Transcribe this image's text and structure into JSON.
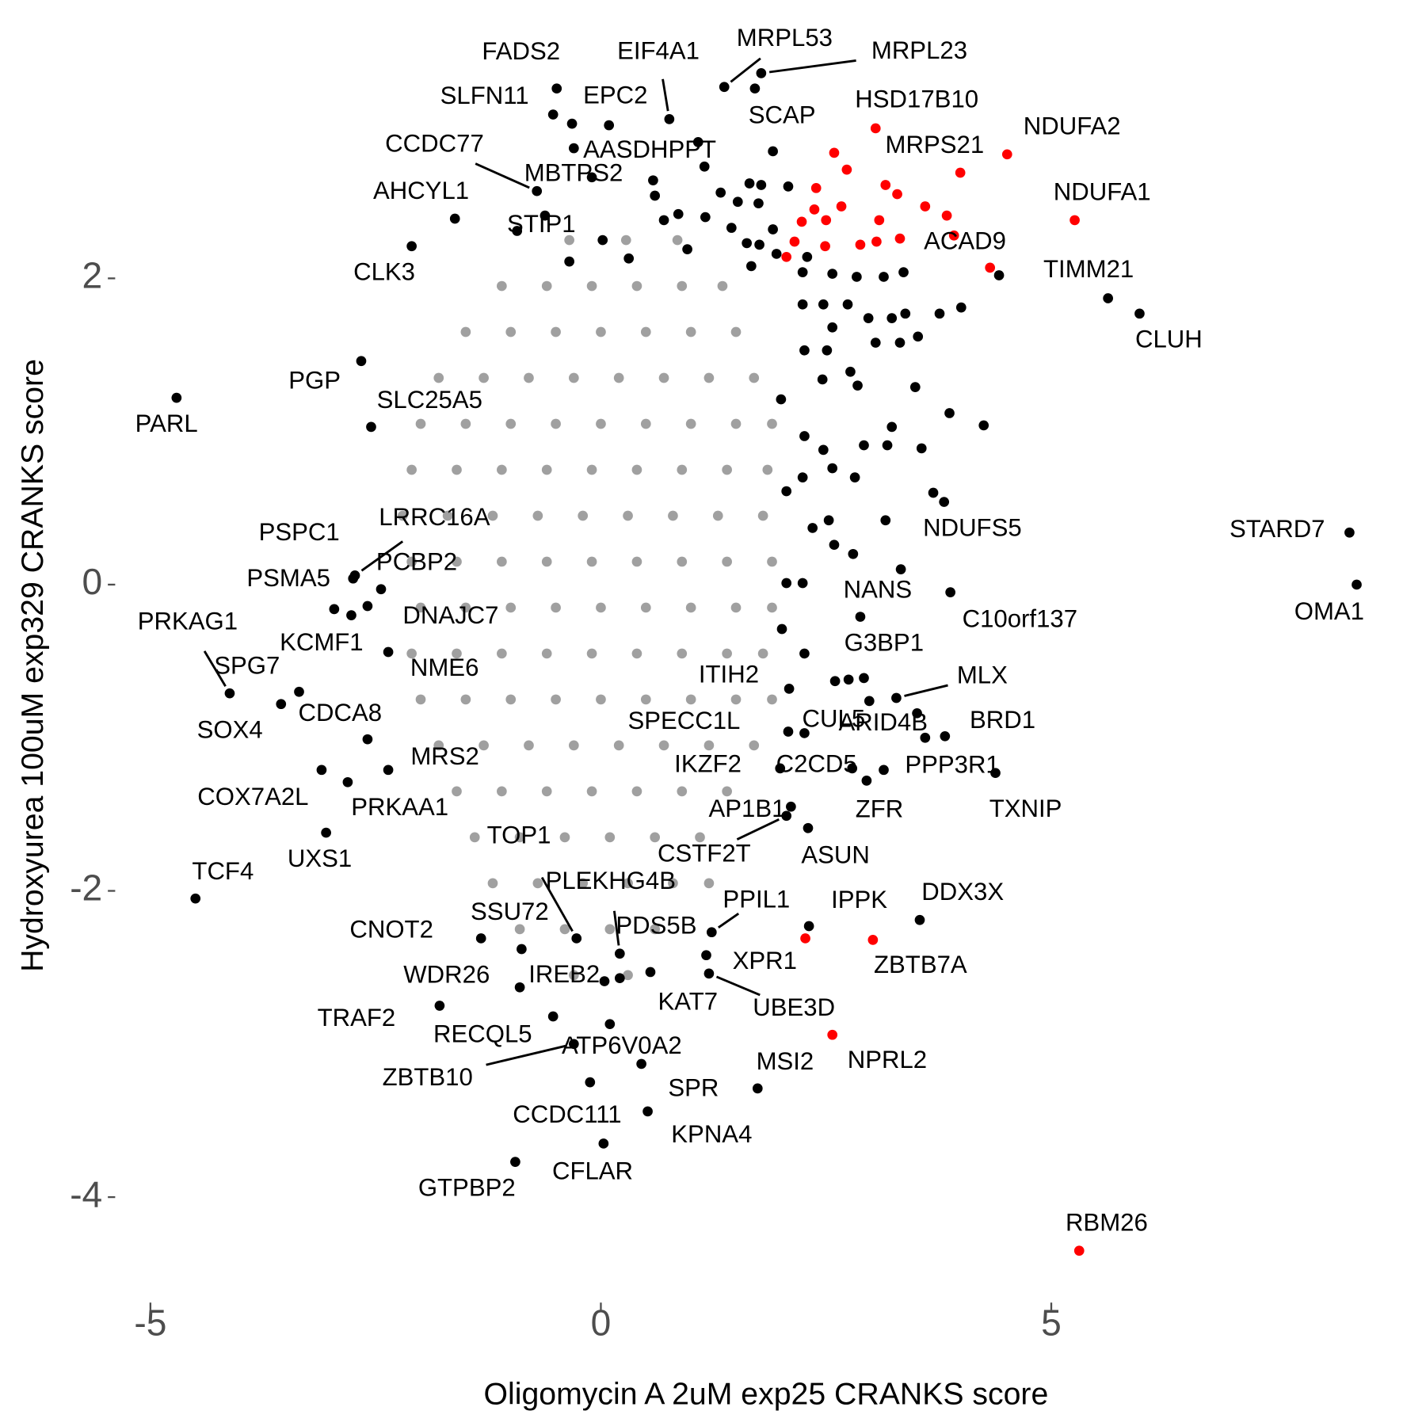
{
  "chart_data": {
    "type": "scatter",
    "x_label": "Oligomycin A 2uM exp25 CRANKS score",
    "y_label": "Hydroxyurea 100uM exp329 CRANKS score",
    "xlim": [
      -5.3,
      8.5
    ],
    "ylim": [
      -4.45,
      3.4
    ],
    "xticks": [
      -5,
      0,
      5
    ],
    "yticks": [
      -4,
      -2,
      0,
      2
    ],
    "grid": false,
    "series": [
      {
        "color": "#a0a0a0",
        "x": [
          -0.35,
          0.28,
          0.85,
          -1.1,
          -0.6,
          -0.1,
          0.4,
          0.9,
          1.35,
          -1.5,
          -1.0,
          -0.5,
          0,
          0.5,
          1.0,
          1.5,
          -1.8,
          -1.3,
          -0.8,
          -0.3,
          0.2,
          0.7,
          1.2,
          1.7,
          -2.0,
          -1.5,
          -1.0,
          -0.5,
          0,
          0.5,
          1.0,
          1.5,
          1.9,
          -2.1,
          -1.6,
          -1.1,
          -0.6,
          -0.1,
          0.4,
          0.9,
          1.4,
          1.85,
          -2.2,
          -1.7,
          -1.2,
          -0.7,
          -0.2,
          0.3,
          0.8,
          1.3,
          1.8,
          -2.1,
          -1.6,
          -1.1,
          -0.6,
          -0.1,
          0.4,
          0.9,
          1.4,
          1.9,
          -2.0,
          -1.5,
          -1.0,
          -0.5,
          0,
          0.5,
          1.0,
          1.5,
          1.9,
          -2.1,
          -1.6,
          -1.1,
          -0.6,
          -0.1,
          0.4,
          0.9,
          1.4,
          1.8,
          -2.0,
          -1.5,
          -1.0,
          -0.5,
          0,
          0.5,
          1.0,
          1.5,
          1.9,
          -1.8,
          -1.3,
          -0.8,
          -0.3,
          0.2,
          0.7,
          1.2,
          1.7,
          -1.6,
          -1.1,
          -0.6,
          -0.1,
          0.4,
          0.9,
          1.4,
          -1.4,
          -0.9,
          -0.4,
          0.1,
          0.6,
          1.1,
          -1.2,
          -0.7,
          -0.2,
          0.3,
          0.8,
          1.2,
          -0.9,
          -0.4,
          0.1,
          0.6,
          -0.3,
          0.3
        ],
        "y": [
          2.25,
          2.25,
          2.25,
          1.95,
          1.95,
          1.95,
          1.95,
          1.95,
          1.95,
          1.65,
          1.65,
          1.65,
          1.65,
          1.65,
          1.65,
          1.65,
          1.35,
          1.35,
          1.35,
          1.35,
          1.35,
          1.35,
          1.35,
          1.35,
          1.05,
          1.05,
          1.05,
          1.05,
          1.05,
          1.05,
          1.05,
          1.05,
          1.05,
          0.75,
          0.75,
          0.75,
          0.75,
          0.75,
          0.75,
          0.75,
          0.75,
          0.75,
          0.45,
          0.45,
          0.45,
          0.45,
          0.45,
          0.45,
          0.45,
          0.45,
          0.45,
          0.15,
          0.15,
          0.15,
          0.15,
          0.15,
          0.15,
          0.15,
          0.15,
          0.15,
          -0.15,
          -0.15,
          -0.15,
          -0.15,
          -0.15,
          -0.15,
          -0.15,
          -0.15,
          -0.15,
          -0.45,
          -0.45,
          -0.45,
          -0.45,
          -0.45,
          -0.45,
          -0.45,
          -0.45,
          -0.45,
          -0.75,
          -0.75,
          -0.75,
          -0.75,
          -0.75,
          -0.75,
          -0.75,
          -0.75,
          -0.75,
          -1.05,
          -1.05,
          -1.05,
          -1.05,
          -1.05,
          -1.05,
          -1.05,
          -1.05,
          -1.35,
          -1.35,
          -1.35,
          -1.35,
          -1.35,
          -1.35,
          -1.35,
          -1.65,
          -1.65,
          -1.65,
          -1.65,
          -1.65,
          -1.65,
          -1.95,
          -1.95,
          -1.95,
          -1.95,
          -1.95,
          -1.95,
          -2.25,
          -2.25,
          -2.25,
          -2.25,
          -2.55,
          -2.55
        ]
      },
      {
        "color": "#000000",
        "x": [
          0.58,
          0.6,
          0.86,
          0.7,
          1.16,
          1.33,
          1.52,
          1.65,
          1.78,
          1.75,
          2.08,
          1.45,
          1.62,
          1.76,
          1.91,
          1.95,
          1.67,
          0.96,
          0.02,
          0.31,
          -0.35,
          -0.3,
          -0.32,
          1.15,
          1.71,
          2.24,
          2.29,
          2.57,
          2.84,
          3.14,
          3.36,
          2.24,
          2.47,
          2.74,
          2.97,
          3.23,
          3.38,
          3.76,
          4.0,
          2.57,
          2.26,
          2.51,
          3.05,
          3.32,
          3.52,
          2.77,
          2.85,
          2.46,
          2.0,
          3.49,
          3.87,
          4.25,
          3.23,
          2.92,
          2.47,
          2.26,
          3.56,
          3.18,
          2.24,
          2.57,
          2.82,
          2.06,
          3.69,
          3.81,
          2.35,
          2.53,
          2.59,
          2.8,
          3.33,
          2.06,
          2.24,
          2.01,
          2.6,
          2.75,
          2.92,
          2.98,
          3.51,
          5.63,
          -0.93
        ],
        "y": [
          2.64,
          2.54,
          2.42,
          2.38,
          2.4,
          2.56,
          2.5,
          2.62,
          2.61,
          2.49,
          2.6,
          2.33,
          2.23,
          2.22,
          2.32,
          2.16,
          2.08,
          2.19,
          2.25,
          2.13,
          2.11,
          2.85,
          3.01,
          2.73,
          3.24,
          2.04,
          2.14,
          2.03,
          2.01,
          2.01,
          2.04,
          1.83,
          1.83,
          1.83,
          1.74,
          1.74,
          1.77,
          1.77,
          1.81,
          1.68,
          1.53,
          1.53,
          1.58,
          1.58,
          1.62,
          1.39,
          1.3,
          1.34,
          1.21,
          1.29,
          1.12,
          1.04,
          1.03,
          0.91,
          0.88,
          0.97,
          0.89,
          0.91,
          0.7,
          0.76,
          0.7,
          0.61,
          0.6,
          0.54,
          0.37,
          0.42,
          0.26,
          0.2,
          0.1,
          0.01,
          0.01,
          -0.29,
          -0.63,
          -0.62,
          -0.61,
          -0.76,
          -0.84,
          1.87,
          2.31
        ]
      },
      {
        "color": "#ff0000",
        "x": [
          2.59,
          2.73,
          2.39,
          3.16,
          3.29,
          2.23,
          2.37,
          2.5,
          2.67,
          3.09,
          2.88,
          3.06,
          3.32,
          3.6,
          3.84,
          4.32,
          2.06,
          2.15,
          2.49,
          2.27
        ],
        "y": [
          2.82,
          2.71,
          2.59,
          2.61,
          2.55,
          2.37,
          2.45,
          2.38,
          2.47,
          2.38,
          2.22,
          2.24,
          2.26,
          2.47,
          2.41,
          2.07,
          2.14,
          2.24,
          2.21,
          -2.31
        ]
      },
      {
        "color": "#000000",
        "labels": [
          "FADS2",
          "SLFN11",
          "EIF4A1",
          "EPC2",
          "MRPL53",
          "MRPL23",
          "SCAP",
          "AASDHPPT",
          "CCDC77",
          "MBTPS2",
          "AHCYL1",
          "STIP1",
          "CLK3",
          "PGP",
          "PARL",
          "SLC25A5",
          "PSPC1",
          "LRRC16A",
          "PSMA5",
          "PCBP2",
          "DNAJC7",
          "KCMF1",
          "PRKAG1",
          "SPG7",
          "SOX4",
          "NME6",
          "CDCA8",
          "MRS2",
          "COX7A2L",
          "PRKAA1",
          "UXS1",
          "TCF4",
          "CNOT2",
          "SSU72",
          "TOP1",
          "PLEKHG4B",
          "PDS5B",
          "WDR26",
          "IREB2",
          "KAT7",
          "UBE3D",
          "XPR1",
          "PPIL1",
          "TRAF2",
          "RECQL5",
          "ATP6V0A2",
          "ZBTB10",
          "SPR",
          "CCDC111",
          "MSI2",
          "KPNA4",
          "CFLAR",
          "GTPBP2",
          "ITIH2",
          "SPECC1L",
          "CUL5",
          "ARID4B",
          "BRD1",
          "IKZF2",
          "C2CD5",
          "PPP3R1",
          "ZFR",
          "TXNIP",
          "AP1B1",
          "ASUN",
          "CSTF2T",
          "IPPK",
          "DDX3X",
          "NANS",
          "G3BP1",
          "C10orf137",
          "MLX",
          "NDUFS5",
          "STARD7",
          "OMA1",
          "TIMM21",
          "CLUH"
        ],
        "x": [
          -0.49,
          -0.53,
          0.76,
          0.09,
          1.37,
          1.78,
          1.91,
          1.08,
          -0.71,
          -0.1,
          -1.62,
          -0.62,
          -2.1,
          -2.66,
          -4.71,
          -2.55,
          -2.75,
          -2.73,
          -2.96,
          -2.44,
          -2.59,
          -2.36,
          -4.12,
          -3.35,
          -3.55,
          -2.77,
          -2.59,
          -2.36,
          -3.1,
          -2.81,
          -3.05,
          -4.5,
          -1.33,
          -0.88,
          -0.27,
          0.21,
          0.21,
          -0.9,
          0.04,
          0.55,
          1.2,
          1.17,
          1.23,
          -1.79,
          -0.53,
          0.1,
          -0.3,
          0.45,
          -0.12,
          1.74,
          0.52,
          0.03,
          -0.95,
          2.09,
          2.08,
          2.26,
          3.6,
          3.82,
          1.99,
          2.79,
          3.14,
          2.95,
          4.38,
          2.11,
          2.3,
          2.06,
          2.31,
          3.54,
          2.88,
          2.26,
          3.88,
          3.28,
          3.16,
          8.31,
          8.39,
          4.42,
          5.98
        ],
        "y": [
          3.24,
          3.07,
          3.04,
          3.0,
          3.25,
          3.34,
          2.83,
          2.89,
          2.57,
          2.66,
          2.39,
          2.41,
          2.21,
          1.46,
          1.22,
          1.03,
          0.04,
          0.06,
          -0.16,
          -0.03,
          -0.14,
          -0.44,
          -0.71,
          -0.7,
          -0.78,
          -0.2,
          -1.01,
          -1.21,
          -1.21,
          -1.29,
          -1.62,
          -2.05,
          -2.31,
          -2.38,
          -2.31,
          -2.41,
          -2.57,
          -2.63,
          -2.59,
          -2.53,
          -2.54,
          -2.42,
          -2.27,
          -2.75,
          -2.82,
          -2.87,
          -3.0,
          -3.13,
          -3.25,
          -3.29,
          -3.44,
          -3.65,
          -3.77,
          -0.68,
          -0.96,
          -0.97,
          -1.0,
          -0.99,
          -1.2,
          -1.2,
          -1.21,
          -1.28,
          -1.23,
          -1.45,
          -1.59,
          -1.51,
          -2.23,
          -2.19,
          -0.21,
          -0.45,
          -0.05,
          -0.74,
          0.42,
          0.34,
          0.0,
          2.02,
          1.77
        ]
      },
      {
        "color": "#ff0000",
        "labels": [
          "HSD17B10",
          "MRPS21",
          "NDUFA2",
          "NDUFA1",
          "ACAD9",
          "ZBTB7A",
          "NPRL2",
          "RBM26"
        ],
        "x": [
          3.05,
          3.99,
          4.51,
          5.26,
          3.92,
          3.02,
          2.57,
          5.31
        ],
        "y": [
          2.98,
          2.69,
          2.81,
          2.38,
          2.28,
          -2.32,
          -2.94,
          -4.35
        ]
      }
    ]
  }
}
